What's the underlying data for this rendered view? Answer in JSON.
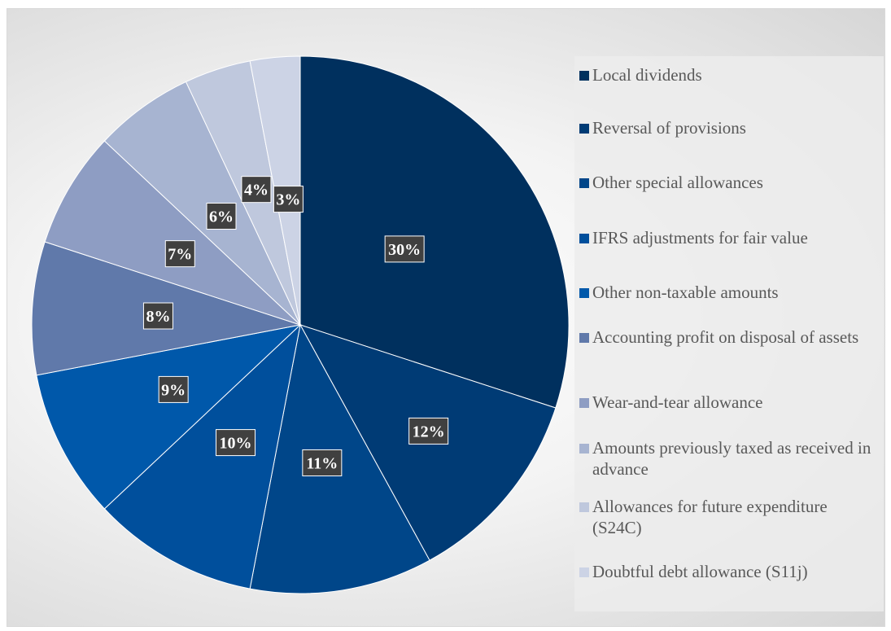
{
  "chart_data": {
    "type": "pie",
    "title": "",
    "slices": [
      {
        "label": "Local dividends",
        "value": 30,
        "data_label": "30%",
        "color": "#00305e"
      },
      {
        "label": "Reversal of provisions",
        "value": 12,
        "data_label": "12%",
        "color": "#003b75"
      },
      {
        "label": "Other special allowances",
        "value": 11,
        "data_label": "11%",
        "color": "#004689"
      },
      {
        "label": "IFRS adjustments for fair value",
        "value": 10,
        "data_label": "10%",
        "color": "#004f9c"
      },
      {
        "label": "Other non-taxable amounts",
        "value": 9,
        "data_label": "9%",
        "color": "#0058aa"
      },
      {
        "label": "Accounting profit on disposal of assets",
        "value": 8,
        "data_label": "8%",
        "color": "#6079aa"
      },
      {
        "label": "Wear-and-tear allowance",
        "value": 7,
        "data_label": "7%",
        "color": "#8e9dc3"
      },
      {
        "label": "Amounts previously taxed as received in advance",
        "value": 6,
        "data_label": "6%",
        "color": "#a7b4d1"
      },
      {
        "label": "Allowances for future expenditure (S24C)",
        "value": 4,
        "data_label": "4%",
        "color": "#bfc8dd"
      },
      {
        "label": "Doubtful debt allowance (S11j)",
        "value": 3,
        "data_label": "3%",
        "color": "#ccd3e5"
      }
    ],
    "legend_position": "right"
  }
}
